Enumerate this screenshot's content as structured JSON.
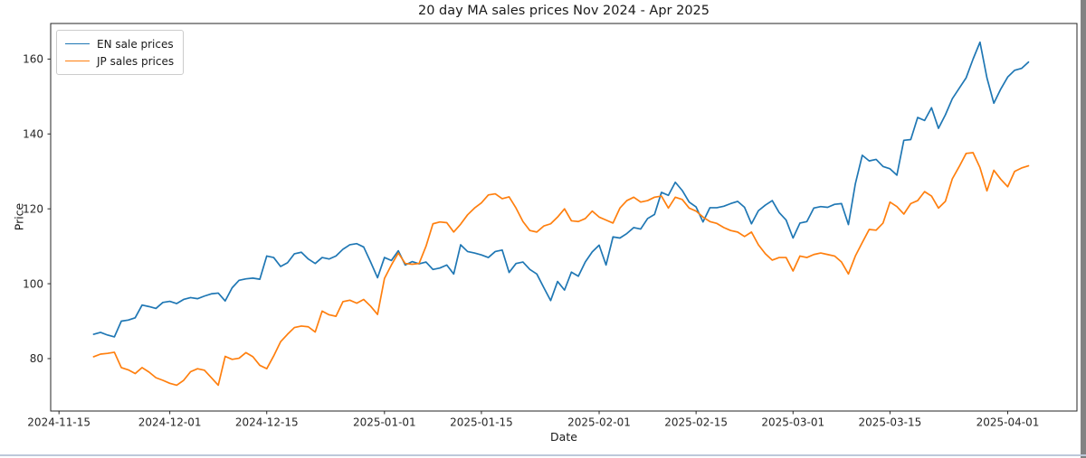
{
  "chart_data": {
    "type": "line",
    "title": "20 day MA sales prices Nov 2024 - Apr 2025",
    "xlabel": "Date",
    "ylabel": "Price",
    "grid": false,
    "legend_position": "upper left",
    "x_start_date": "2024-11-20",
    "x_frequency": "daily",
    "x_tick_labels": [
      "2024-11-15",
      "2024-12-01",
      "2024-12-15",
      "2025-01-01",
      "2025-01-15",
      "2025-02-01",
      "2025-02-15",
      "2025-03-01",
      "2025-03-15",
      "2025-04-01"
    ],
    "x_tick_day_offsets": [
      -5,
      11,
      25,
      42,
      56,
      73,
      87,
      101,
      115,
      132
    ],
    "y_ticks": [
      80,
      100,
      120,
      140,
      160
    ],
    "ylim": [
      66,
      169.5
    ],
    "xlim_days": [
      -6.2,
      142
    ],
    "axis_color": "#262626",
    "series": [
      {
        "name": "EN sale prices",
        "color": "#1f77b4",
        "values": [
          86.5,
          87.0,
          86.3,
          85.8,
          90.0,
          90.3,
          90.9,
          94.3,
          93.9,
          93.4,
          95.0,
          95.3,
          94.7,
          95.8,
          96.3,
          96.0,
          96.7,
          97.3,
          97.5,
          95.4,
          98.9,
          100.9,
          101.3,
          101.5,
          101.2,
          107.4,
          107.0,
          104.6,
          105.6,
          108.0,
          108.4,
          106.6,
          105.4,
          107.0,
          106.6,
          107.4,
          109.2,
          110.4,
          110.7,
          109.8,
          105.8,
          101.6,
          107.0,
          106.2,
          108.8,
          105.0,
          105.9,
          105.3,
          105.8,
          103.8,
          104.2,
          105.0,
          102.6,
          110.4,
          108.6,
          108.2,
          107.7,
          107.0,
          108.6,
          109.0,
          103.0,
          105.4,
          105.8,
          103.8,
          102.6,
          99.0,
          95.5,
          100.6,
          98.3,
          103.1,
          102.0,
          105.8,
          108.5,
          110.3,
          105.0,
          112.5,
          112.2,
          113.4,
          115.0,
          114.6,
          117.4,
          118.5,
          124.4,
          123.6,
          127.1,
          124.9,
          121.8,
          120.5,
          116.5,
          120.3,
          120.3,
          120.7,
          121.4,
          122.0,
          120.4,
          116.0,
          119.5,
          121.0,
          122.2,
          119.0,
          117.0,
          112.2,
          116.2,
          116.6,
          120.2,
          120.6,
          120.4,
          121.2,
          121.4,
          115.8,
          126.7,
          134.3,
          132.8,
          133.2,
          131.3,
          130.7,
          129.0,
          138.3,
          138.5,
          144.4,
          143.6,
          147.0,
          141.5,
          145.1,
          149.4,
          152.2,
          155.0,
          160.0,
          164.5,
          155.0,
          148.2,
          152.0,
          155.2,
          157.0,
          157.5,
          159.2
        ]
      },
      {
        "name": "JP sales prices",
        "color": "#ff7f0e",
        "values": [
          80.5,
          81.2,
          81.4,
          81.7,
          77.6,
          77.0,
          76.0,
          77.6,
          76.4,
          74.9,
          74.2,
          73.4,
          72.9,
          74.2,
          76.5,
          77.3,
          76.9,
          74.9,
          72.9,
          80.6,
          79.8,
          80.1,
          81.6,
          80.5,
          78.2,
          77.3,
          80.7,
          84.5,
          86.5,
          88.3,
          88.7,
          88.5,
          87.1,
          92.7,
          91.7,
          91.3,
          95.2,
          95.6,
          94.8,
          95.8,
          94.0,
          91.8,
          101.4,
          105.0,
          108.2,
          105.4,
          105.2,
          105.4,
          110.0,
          116.0,
          116.5,
          116.3,
          113.8,
          115.9,
          118.4,
          120.2,
          121.6,
          123.7,
          124.0,
          122.7,
          123.2,
          120.2,
          116.6,
          114.2,
          113.8,
          115.4,
          116.0,
          117.8,
          120.0,
          116.8,
          116.6,
          117.4,
          119.4,
          117.8,
          117.0,
          116.2,
          120.2,
          122.2,
          123.1,
          121.8,
          122.2,
          123.1,
          123.4,
          120.2,
          123.1,
          122.5,
          120.2,
          119.4,
          117.8,
          116.6,
          116.1,
          115.0,
          114.2,
          113.8,
          112.6,
          113.8,
          110.4,
          108.0,
          106.3,
          107.0,
          107.0,
          103.4,
          107.4,
          107.0,
          107.8,
          108.2,
          107.8,
          107.4,
          105.8,
          102.6,
          107.4,
          111.0,
          114.5,
          114.3,
          116.2,
          121.8,
          120.6,
          118.6,
          121.4,
          122.2,
          124.6,
          123.4,
          120.2,
          122.0,
          128.0,
          131.3,
          134.8,
          135.0,
          131.0,
          124.8,
          130.3,
          127.9,
          125.9,
          130.0,
          130.9,
          131.5
        ]
      }
    ]
  },
  "ui": {
    "right_scrollbar_color": "#828282",
    "bottom_edge_line_color": "#bcc8da",
    "background_color": "#ffffff"
  }
}
